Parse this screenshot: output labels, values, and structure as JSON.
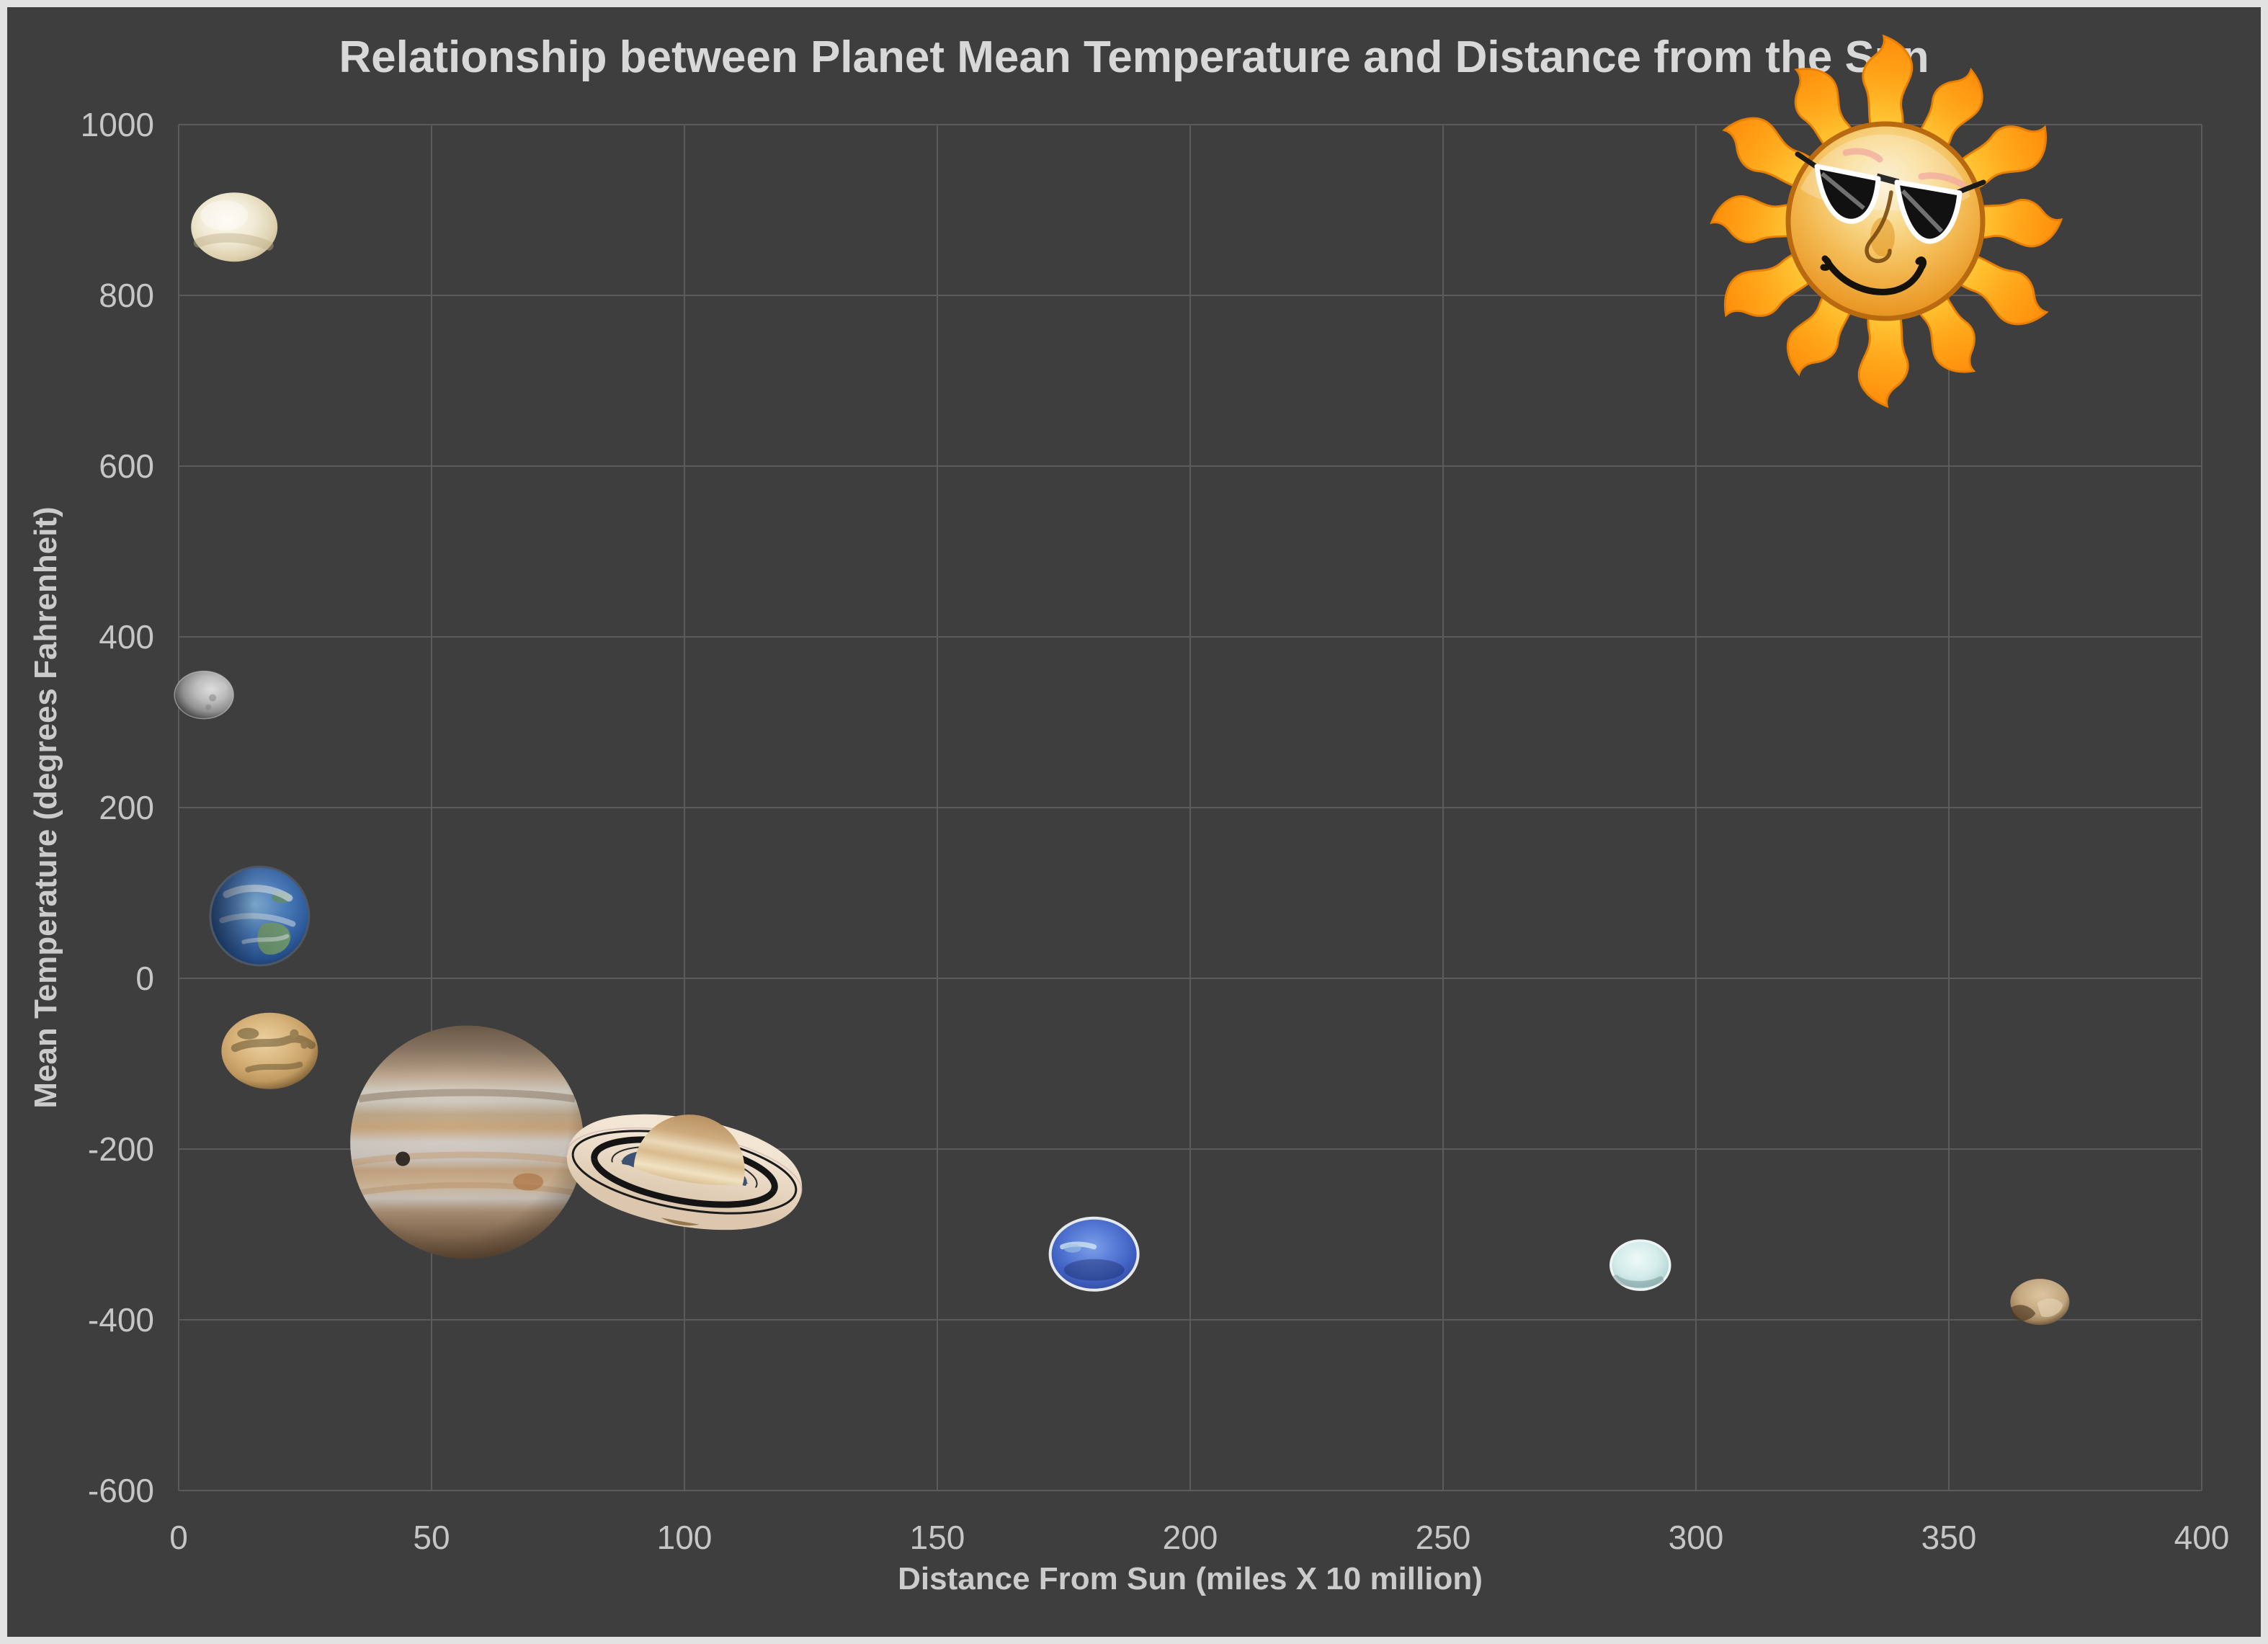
{
  "chart": {
    "title": "Relationship between Planet Mean Temperature and Distance from the Sun",
    "x_axis": {
      "label": "Distance From Sun (miles X 10 million)",
      "min": 0,
      "max": 400,
      "tick_step": 50,
      "ticks": [
        0,
        50,
        100,
        150,
        200,
        250,
        300,
        350,
        400
      ]
    },
    "y_axis": {
      "label": "Mean Temperature (degrees Fahrenheit)",
      "min": -600,
      "max": 1000,
      "tick_step": 200,
      "ticks": [
        1000,
        800,
        600,
        400,
        200,
        0,
        -200,
        -400,
        -600
      ]
    },
    "colors": {
      "background": "#3e3e3e",
      "gridline": "#5b5b5b",
      "frame": "#e2e2e2",
      "title_text": "#d8d8d8",
      "tick_text": "#c6c6c6",
      "axis_title_text": "#cbcbcb",
      "sun_orange": "#f0a830",
      "sun_ray_orange": "#ff9010"
    },
    "decoration": "cartoon-sun-with-sunglasses-icon in top right corner"
  },
  "chart_data": {
    "type": "scatter",
    "title": "Relationship between Planet Mean Temperature and Distance from the Sun",
    "xlabel": "Distance From Sun (miles X 10 million)",
    "ylabel": "Mean Temperature (degrees Fahrenheit)",
    "xlim": [
      0,
      400
    ],
    "ylim": [
      -600,
      1000
    ],
    "grid": true,
    "legend": "none",
    "marker_style": "planet images used as data markers",
    "points": [
      {
        "planet": "Mercury",
        "x": 5,
        "y": 332,
        "color": "#9e9e9e",
        "marker_px": 82
      },
      {
        "planet": "Venus",
        "x": 11,
        "y": 880,
        "color": "#e9e0c8",
        "marker_px": 120
      },
      {
        "planet": "Earth",
        "x": 16,
        "y": 73,
        "color": "#3f6fae",
        "marker_px": 135
      },
      {
        "planet": "Mars",
        "x": 18,
        "y": -85,
        "color": "#d3a968",
        "marker_px": 134
      },
      {
        "planet": "Jupiter",
        "x": 57,
        "y": -192,
        "color": "#b49a7e",
        "marker_px": 324
      },
      {
        "planet": "Saturn",
        "x": 100,
        "y": -227,
        "color": "#e3cfae",
        "marker_px": 336
      },
      {
        "planet": "Neptune",
        "x": 181,
        "y": -323,
        "color": "#3f62c8",
        "marker_px": 122
      },
      {
        "planet": "Uranus",
        "x": 289,
        "y": -336,
        "color": "#c8e6e4",
        "marker_px": 81
      },
      {
        "planet": "Pluto",
        "x": 368,
        "y": -379,
        "color": "#c0a37c",
        "marker_px": 82
      }
    ]
  }
}
